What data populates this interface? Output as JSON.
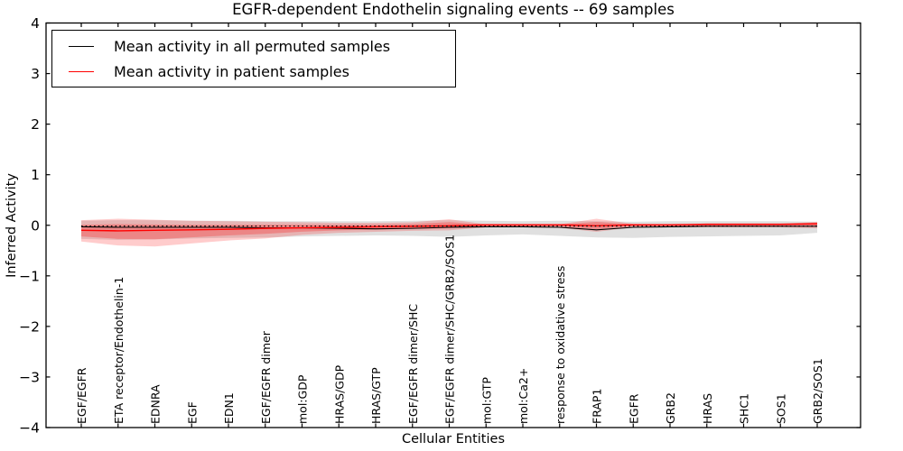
{
  "chart_data": {
    "type": "line",
    "title": "EGFR-dependent Endothelin signaling events -- 69 samples",
    "xlabel": "Cellular Entities",
    "ylabel": "Inferred Activity",
    "ylim": [
      -4,
      4
    ],
    "yticks": [
      4,
      3,
      2,
      1,
      0,
      -1,
      -2,
      -3,
      -4
    ],
    "grid": false,
    "legend_position": "upper left",
    "axis_color": "#000000",
    "background_color": "#ffffff",
    "categories": [
      "EGF/EGFR",
      "ETA receptor/Endothelin-1",
      "EDNRA",
      "EGF",
      "EDN1",
      "EGF/EGFR dimer",
      "mol:GDP",
      "HRAS/GDP",
      "HRAS/GTP",
      "EGF/EGFR dimer/SHC",
      "EGF/EGFR dimer/SHC/GRB2/SOS1",
      "mol:GTP",
      "mol:Ca2+",
      "response to oxidative stress",
      "FRAP1",
      "EGFR",
      "GRB2",
      "HRAS",
      "SHC1",
      "SOS1",
      "GRB2/SOS1"
    ],
    "series": [
      {
        "name": "Mean activity in all permuted samples",
        "type": "line",
        "style": "solid",
        "color": "#000000",
        "values": [
          -0.03,
          -0.04,
          -0.04,
          -0.04,
          -0.04,
          -0.05,
          -0.05,
          -0.06,
          -0.07,
          -0.06,
          -0.04,
          -0.03,
          -0.03,
          -0.04,
          -0.09,
          -0.04,
          -0.03,
          -0.02,
          -0.02,
          -0.02,
          -0.02
        ]
      },
      {
        "name": "Mean activity in patient samples",
        "type": "line",
        "style": "solid",
        "color": "#ff0000",
        "values": [
          -0.1,
          -0.11,
          -0.1,
          -0.09,
          -0.08,
          -0.06,
          -0.05,
          -0.04,
          -0.03,
          -0.02,
          -0.01,
          0.01,
          0.01,
          0.01,
          -0.01,
          0.01,
          0.01,
          0.02,
          0.02,
          0.02,
          0.03
        ]
      },
      {
        "name": "permuted-samples-std-band",
        "type": "band",
        "color": "rgba(0,0,0,0.12)",
        "upper": [
          0.09,
          0.1,
          0.1,
          0.09,
          0.09,
          0.08,
          0.08,
          0.08,
          0.08,
          0.09,
          0.1,
          0.09,
          0.08,
          0.09,
          0.08,
          0.07,
          0.08,
          0.08,
          0.08,
          0.08,
          0.07
        ],
        "lower": [
          -0.27,
          -0.29,
          -0.28,
          -0.26,
          -0.25,
          -0.24,
          -0.22,
          -0.21,
          -0.2,
          -0.21,
          -0.23,
          -0.2,
          -0.18,
          -0.21,
          -0.24,
          -0.25,
          -0.23,
          -0.22,
          -0.21,
          -0.2,
          -0.15
        ]
      },
      {
        "name": "patient-samples-std-band",
        "type": "band",
        "color": "rgba(255,0,0,0.20)",
        "inner_core_alpha": "rgba(255,0,0,0.25)",
        "upper": [
          0.1,
          0.13,
          0.11,
          0.09,
          0.08,
          0.07,
          0.06,
          0.05,
          0.05,
          0.06,
          0.12,
          0.02,
          0.02,
          0.02,
          0.13,
          0.03,
          0.02,
          0.02,
          0.02,
          0.03,
          0.07
        ],
        "lower": [
          -0.32,
          -0.4,
          -0.42,
          -0.36,
          -0.3,
          -0.26,
          -0.19,
          -0.15,
          -0.13,
          -0.11,
          -0.1,
          -0.04,
          -0.04,
          -0.05,
          -0.13,
          -0.04,
          -0.04,
          -0.04,
          -0.04,
          -0.04,
          -0.06
        ]
      },
      {
        "name": "baseline-dotted-reference",
        "type": "line",
        "style": "dotted",
        "color": "#000000",
        "constant": -0.015
      }
    ],
    "legend": [
      {
        "label": "Mean activity in all permuted samples",
        "color": "#000000"
      },
      {
        "label": "Mean activity in patient samples",
        "color": "#ff0000"
      }
    ]
  }
}
